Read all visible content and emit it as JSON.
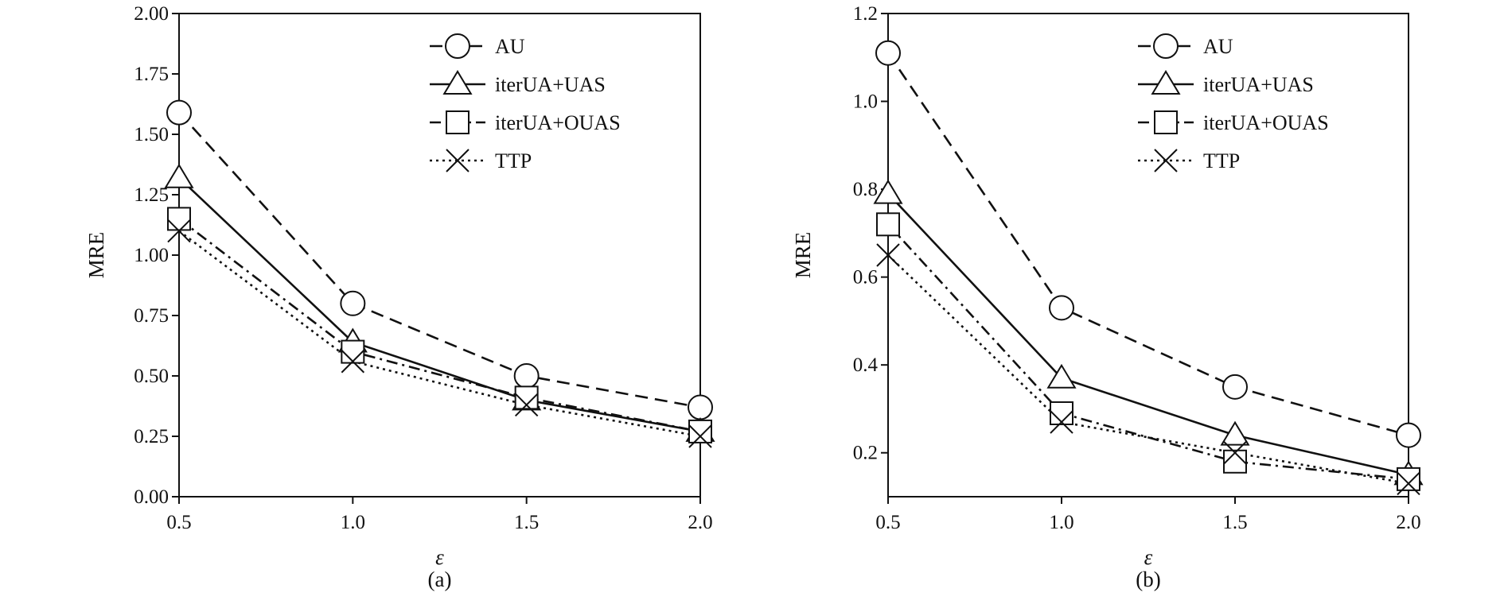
{
  "chart_data": [
    {
      "type": "line",
      "caption": "(a)",
      "xlabel": "ε",
      "ylabel": "MRE",
      "x": [
        0.5,
        1.0,
        1.5,
        2.0
      ],
      "xticks": [
        "0.5",
        "1.0",
        "1.5",
        "2.0"
      ],
      "xlim": [
        0.5,
        2.0
      ],
      "ylim": [
        0.0,
        2.0
      ],
      "yticks": [
        "0.00",
        "0.25",
        "0.50",
        "0.75",
        "1.00",
        "1.25",
        "1.50",
        "1.75",
        "2.00"
      ],
      "ytick_values": [
        0.0,
        0.25,
        0.5,
        0.75,
        1.0,
        1.25,
        1.5,
        1.75,
        2.0
      ],
      "legend_position": "top-right",
      "series": [
        {
          "name": "AU",
          "marker": "circle",
          "line_style": "dashed",
          "values": [
            1.59,
            0.8,
            0.5,
            0.37
          ]
        },
        {
          "name": "iterUA+UAS",
          "marker": "triangle",
          "line_style": "solid",
          "values": [
            1.32,
            0.64,
            0.4,
            0.27
          ]
        },
        {
          "name": "iterUA+OUAS",
          "marker": "square",
          "line_style": "dash-dot",
          "values": [
            1.15,
            0.6,
            0.41,
            0.27
          ]
        },
        {
          "name": "TTP",
          "marker": "x",
          "line_style": "dotted",
          "values": [
            1.1,
            0.56,
            0.38,
            0.25
          ]
        }
      ]
    },
    {
      "type": "line",
      "caption": "(b)",
      "xlabel": "ε",
      "ylabel": "MRE",
      "x": [
        0.5,
        1.0,
        1.5,
        2.0
      ],
      "xticks": [
        "0.5",
        "1.0",
        "1.5",
        "2.0"
      ],
      "xlim": [
        0.5,
        2.0
      ],
      "ylim": [
        0.1,
        1.2
      ],
      "yticks": [
        "0.2",
        "0.4",
        "0.6",
        "0.8",
        "1.0",
        "1.2"
      ],
      "ytick_values": [
        0.2,
        0.4,
        0.6,
        0.8,
        1.0,
        1.2
      ],
      "legend_position": "top-right",
      "series": [
        {
          "name": "AU",
          "marker": "circle",
          "line_style": "dashed",
          "values": [
            1.11,
            0.53,
            0.35,
            0.24
          ]
        },
        {
          "name": "iterUA+UAS",
          "marker": "triangle",
          "line_style": "solid",
          "values": [
            0.79,
            0.37,
            0.24,
            0.15
          ]
        },
        {
          "name": "iterUA+OUAS",
          "marker": "square",
          "line_style": "dash-dot",
          "values": [
            0.72,
            0.29,
            0.18,
            0.14
          ]
        },
        {
          "name": "TTP",
          "marker": "x",
          "line_style": "dotted",
          "values": [
            0.65,
            0.27,
            0.2,
            0.13
          ]
        }
      ]
    }
  ]
}
